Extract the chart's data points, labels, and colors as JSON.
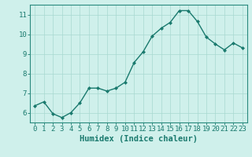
{
  "x": [
    0,
    1,
    2,
    3,
    4,
    5,
    6,
    7,
    8,
    9,
    10,
    11,
    12,
    13,
    14,
    15,
    16,
    17,
    18,
    19,
    20,
    21,
    22,
    23
  ],
  "y": [
    6.35,
    6.55,
    5.95,
    5.75,
    6.0,
    6.5,
    7.25,
    7.25,
    7.1,
    7.25,
    7.55,
    8.55,
    9.1,
    9.9,
    10.3,
    10.6,
    11.2,
    11.2,
    10.65,
    9.85,
    9.5,
    9.2,
    9.55,
    9.3
  ],
  "line_color": "#1a7a6e",
  "marker": "D",
  "marker_size": 2,
  "linewidth": 1.0,
  "bg_color": "#cff0eb",
  "grid_color": "#a8d8d0",
  "xlabel": "Humidex (Indice chaleur)",
  "xlim": [
    -0.5,
    23.5
  ],
  "ylim": [
    5.5,
    11.5
  ],
  "yticks": [
    6,
    7,
    8,
    9,
    10,
    11
  ],
  "xticks": [
    0,
    1,
    2,
    3,
    4,
    5,
    6,
    7,
    8,
    9,
    10,
    11,
    12,
    13,
    14,
    15,
    16,
    17,
    18,
    19,
    20,
    21,
    22,
    23
  ],
  "xlabel_fontsize": 7.5,
  "tick_fontsize": 6.5,
  "tick_color": "#1a7a6e",
  "axis_color": "#1a7a6e",
  "spine_color": "#2a8a7e"
}
